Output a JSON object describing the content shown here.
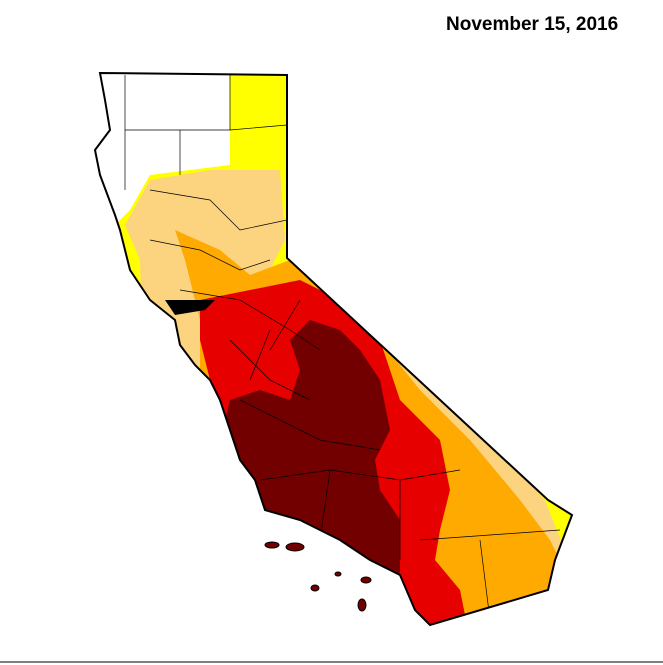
{
  "title": "November 15, 2016"
}
